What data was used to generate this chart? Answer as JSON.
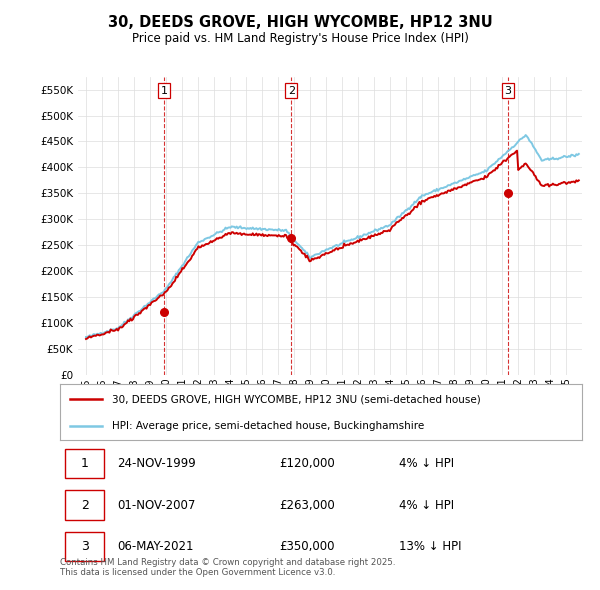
{
  "title": "30, DEEDS GROVE, HIGH WYCOMBE, HP12 3NU",
  "subtitle": "Price paid vs. HM Land Registry's House Price Index (HPI)",
  "legend_line1": "30, DEEDS GROVE, HIGH WYCOMBE, HP12 3NU (semi-detached house)",
  "legend_line2": "HPI: Average price, semi-detached house, Buckinghamshire",
  "footnote": "Contains HM Land Registry data © Crown copyright and database right 2025.\nThis data is licensed under the Open Government Licence v3.0.",
  "transactions": [
    {
      "label": "1",
      "date": "24-NOV-1999",
      "price": 120000,
      "pct": "4%",
      "dir": "↓",
      "x": 1999.9
    },
    {
      "label": "2",
      "date": "01-NOV-2007",
      "price": 263000,
      "pct": "4%",
      "dir": "↓",
      "x": 2007.83
    },
    {
      "label": "3",
      "date": "06-MAY-2021",
      "price": 350000,
      "pct": "13%",
      "dir": "↓",
      "x": 2021.35
    }
  ],
  "hpi_color": "#7ec8e3",
  "price_color": "#cc0000",
  "marker_color": "#cc0000",
  "grid_color": "#dddddd",
  "bg_color": "#ffffff",
  "ylim": [
    0,
    575000
  ],
  "yticks": [
    0,
    50000,
    100000,
    150000,
    200000,
    250000,
    300000,
    350000,
    400000,
    450000,
    500000,
    550000
  ],
  "xlim": [
    1994.5,
    2026.0
  ],
  "xticks": [
    1995,
    1996,
    1997,
    1998,
    1999,
    2000,
    2001,
    2002,
    2003,
    2004,
    2005,
    2006,
    2007,
    2008,
    2009,
    2010,
    2011,
    2012,
    2013,
    2014,
    2015,
    2016,
    2017,
    2018,
    2019,
    2020,
    2021,
    2022,
    2023,
    2024,
    2025
  ]
}
